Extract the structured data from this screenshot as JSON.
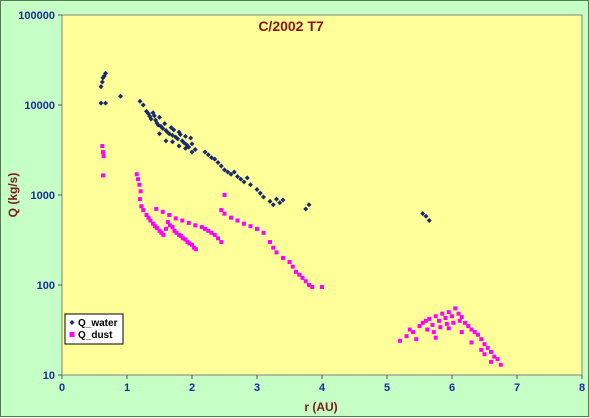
{
  "chart_data": {
    "type": "scatter",
    "title": "C/2002 T7",
    "xlabel": "r (AU)",
    "ylabel": "Q (kg/s)",
    "xlim": [
      0,
      8
    ],
    "ylim": [
      10,
      100000
    ],
    "yscale": "log",
    "x_ticks": [
      "0",
      "1",
      "2",
      "3",
      "4",
      "5",
      "6",
      "7",
      "8"
    ],
    "y_ticks": [
      "10",
      "100",
      "1000",
      "10000",
      "100000"
    ],
    "grid": false,
    "legend_position": "bottom-left",
    "colors": {
      "plot_bg": "#ffff99",
      "outer_bg": "#c6ffc6",
      "q_water": "#1a2a6c",
      "q_dust": "#ff00ff"
    },
    "series": [
      {
        "name": "Q_water",
        "marker": "diamond",
        "color": "#1a2a6c",
        "points": [
          [
            0.6,
            16000
          ],
          [
            0.62,
            18000
          ],
          [
            0.63,
            20000
          ],
          [
            0.65,
            21000
          ],
          [
            0.67,
            22500
          ],
          [
            0.6,
            10500
          ],
          [
            0.67,
            10500
          ],
          [
            0.9,
            12500
          ],
          [
            1.2,
            11000
          ],
          [
            1.25,
            10000
          ],
          [
            1.3,
            8500
          ],
          [
            1.33,
            8000
          ],
          [
            1.35,
            7500
          ],
          [
            1.37,
            7000
          ],
          [
            1.4,
            8200
          ],
          [
            1.42,
            7600
          ],
          [
            1.44,
            6800
          ],
          [
            1.46,
            6300
          ],
          [
            1.48,
            6000
          ],
          [
            1.5,
            7300
          ],
          [
            1.52,
            5800
          ],
          [
            1.55,
            5500
          ],
          [
            1.58,
            6200
          ],
          [
            1.6,
            5200
          ],
          [
            1.62,
            5000
          ],
          [
            1.65,
            4800
          ],
          [
            1.68,
            5600
          ],
          [
            1.7,
            4600
          ],
          [
            1.72,
            5300
          ],
          [
            1.75,
            4400
          ],
          [
            1.78,
            4200
          ],
          [
            1.8,
            5000
          ],
          [
            1.82,
            4700
          ],
          [
            1.85,
            4000
          ],
          [
            1.88,
            3800
          ],
          [
            1.9,
            4500
          ],
          [
            1.92,
            3600
          ],
          [
            1.95,
            3400
          ],
          [
            1.98,
            4300
          ],
          [
            2.0,
            3700
          ],
          [
            2.05,
            3200
          ],
          [
            1.5,
            4800
          ],
          [
            1.6,
            4000
          ],
          [
            1.7,
            3900
          ],
          [
            1.8,
            3500
          ],
          [
            1.9,
            3300
          ],
          [
            2.0,
            3000
          ],
          [
            2.2,
            3000
          ],
          [
            2.25,
            2800
          ],
          [
            2.3,
            2600
          ],
          [
            2.35,
            2500
          ],
          [
            2.4,
            2300
          ],
          [
            2.45,
            2100
          ],
          [
            2.5,
            1900
          ],
          [
            2.55,
            1800
          ],
          [
            2.6,
            1700
          ],
          [
            2.65,
            1800
          ],
          [
            2.7,
            1600
          ],
          [
            2.75,
            1500
          ],
          [
            2.8,
            1400
          ],
          [
            2.85,
            1550
          ],
          [
            2.9,
            1300
          ],
          [
            3.0,
            1150
          ],
          [
            3.05,
            1050
          ],
          [
            3.1,
            950
          ],
          [
            3.2,
            850
          ],
          [
            3.25,
            780
          ],
          [
            3.3,
            900
          ],
          [
            3.35,
            820
          ],
          [
            3.4,
            880
          ],
          [
            3.75,
            700
          ],
          [
            3.8,
            780
          ],
          [
            5.55,
            620
          ],
          [
            5.6,
            580
          ],
          [
            5.65,
            520
          ]
        ]
      },
      {
        "name": "Q_dust",
        "marker": "square",
        "color": "#ff00ff",
        "points": [
          [
            0.62,
            3500
          ],
          [
            0.63,
            3000
          ],
          [
            0.64,
            2700
          ],
          [
            0.63,
            1650
          ],
          [
            1.15,
            1700
          ],
          [
            1.17,
            1500
          ],
          [
            1.19,
            1300
          ],
          [
            1.21,
            1100
          ],
          [
            1.2,
            900
          ],
          [
            1.22,
            750
          ],
          [
            1.25,
            680
          ],
          [
            1.3,
            600
          ],
          [
            1.33,
            560
          ],
          [
            1.36,
            520
          ],
          [
            1.4,
            480
          ],
          [
            1.43,
            450
          ],
          [
            1.46,
            430
          ],
          [
            1.5,
            400
          ],
          [
            1.53,
            380
          ],
          [
            1.56,
            360
          ],
          [
            1.6,
            420
          ],
          [
            1.63,
            500
          ],
          [
            1.66,
            460
          ],
          [
            1.7,
            440
          ],
          [
            1.73,
            400
          ],
          [
            1.76,
            380
          ],
          [
            1.8,
            360
          ],
          [
            1.83,
            350
          ],
          [
            1.86,
            330
          ],
          [
            1.9,
            320
          ],
          [
            1.93,
            300
          ],
          [
            1.96,
            290
          ],
          [
            2.0,
            280
          ],
          [
            2.03,
            260
          ],
          [
            2.06,
            250
          ],
          [
            1.45,
            700
          ],
          [
            1.55,
            650
          ],
          [
            1.65,
            600
          ],
          [
            1.75,
            550
          ],
          [
            1.85,
            520
          ],
          [
            1.95,
            490
          ],
          [
            2.05,
            460
          ],
          [
            2.15,
            440
          ],
          [
            2.2,
            420
          ],
          [
            2.25,
            400
          ],
          [
            2.3,
            380
          ],
          [
            2.35,
            360
          ],
          [
            2.4,
            330
          ],
          [
            2.45,
            300
          ],
          [
            2.45,
            680
          ],
          [
            2.5,
            620
          ],
          [
            2.6,
            560
          ],
          [
            2.7,
            520
          ],
          [
            2.8,
            480
          ],
          [
            2.9,
            450
          ],
          [
            3.0,
            420
          ],
          [
            3.1,
            380
          ],
          [
            2.5,
            1000
          ],
          [
            3.2,
            300
          ],
          [
            3.25,
            260
          ],
          [
            3.3,
            230
          ],
          [
            3.4,
            200
          ],
          [
            3.5,
            180
          ],
          [
            3.55,
            160
          ],
          [
            3.6,
            140
          ],
          [
            3.65,
            130
          ],
          [
            3.7,
            120
          ],
          [
            3.75,
            110
          ],
          [
            3.8,
            100
          ],
          [
            3.85,
            95
          ],
          [
            4.0,
            95
          ],
          [
            5.2,
            24
          ],
          [
            5.3,
            27
          ],
          [
            5.35,
            32
          ],
          [
            5.4,
            30
          ],
          [
            5.45,
            25
          ],
          [
            5.5,
            35
          ],
          [
            5.55,
            38
          ],
          [
            5.6,
            40
          ],
          [
            5.62,
            32
          ],
          [
            5.65,
            42
          ],
          [
            5.7,
            36
          ],
          [
            5.72,
            30
          ],
          [
            5.75,
            45
          ],
          [
            5.8,
            40
          ],
          [
            5.82,
            34
          ],
          [
            5.85,
            48
          ],
          [
            5.9,
            43
          ],
          [
            5.92,
            37
          ],
          [
            5.95,
            50
          ],
          [
            6.0,
            45
          ],
          [
            6.02,
            38
          ],
          [
            6.05,
            55
          ],
          [
            6.1,
            48
          ],
          [
            6.12,
            40
          ],
          [
            6.15,
            44
          ],
          [
            6.2,
            38
          ],
          [
            6.25,
            35
          ],
          [
            6.3,
            32
          ],
          [
            6.35,
            30
          ],
          [
            6.4,
            28
          ],
          [
            6.45,
            25
          ],
          [
            6.5,
            22
          ],
          [
            6.55,
            20
          ],
          [
            6.6,
            18
          ],
          [
            6.65,
            16
          ],
          [
            6.7,
            15
          ],
          [
            6.75,
            13
          ],
          [
            6.6,
            14
          ],
          [
            6.5,
            17
          ],
          [
            5.75,
            26
          ],
          [
            5.95,
            33
          ],
          [
            6.15,
            30
          ],
          [
            6.3,
            23
          ],
          [
            6.45,
            19
          ]
        ]
      }
    ]
  }
}
